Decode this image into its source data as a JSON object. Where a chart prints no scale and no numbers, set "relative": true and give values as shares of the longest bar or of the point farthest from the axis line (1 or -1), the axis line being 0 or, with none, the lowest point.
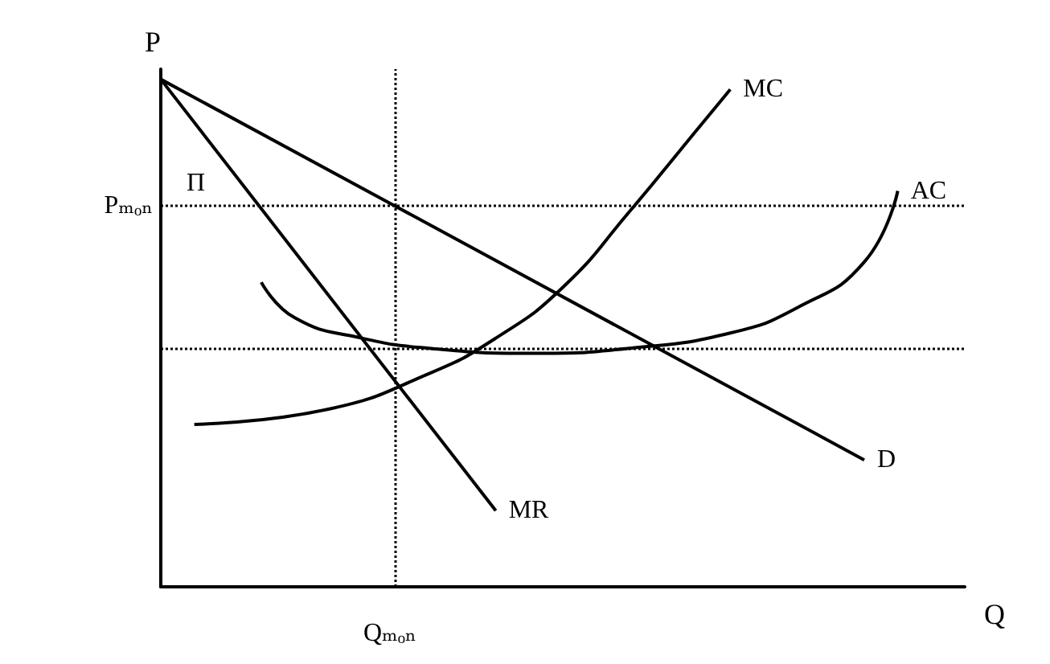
{
  "chart_data": {
    "type": "line",
    "relative": true,
    "xlabel": "Q",
    "ylabel": "P",
    "categories": [
      null,
      null,
      null,
      null,
      null,
      null,
      null,
      null,
      null,
      null,
      null,
      null,
      null,
      null,
      null,
      null,
      null,
      null,
      null,
      null,
      null,
      null,
      null,
      null,
      null
    ],
    "series": [
      {
        "name": "MC",
        "color": "#000000",
        "values": [
          null,
          0.32,
          null,
          null,
          null,
          0.35,
          null,
          null,
          0.42,
          null,
          0.49,
          null,
          0.59,
          null,
          0.74,
          null,
          0.9,
          0.98,
          null,
          null,
          null,
          null,
          null,
          null,
          null
        ]
      },
      {
        "name": "AC",
        "color": "#000000",
        "values": [
          null,
          null,
          null,
          0.6,
          0.53,
          null,
          0.49,
          null,
          0.47,
          null,
          null,
          0.46,
          null,
          null,
          0.47,
          null,
          null,
          0.5,
          null,
          0.55,
          null,
          0.64,
          0.78,
          null,
          null
        ]
      },
      {
        "name": "D",
        "color": "#000000",
        "values": [
          1,
          null,
          null,
          null,
          null,
          null,
          null,
          null,
          null,
          null,
          null,
          null,
          null,
          null,
          null,
          null,
          null,
          null,
          null,
          null,
          null,
          0.25,
          null,
          null,
          null
        ]
      },
      {
        "name": "MR",
        "color": "#000000",
        "values": [
          1,
          null,
          null,
          null,
          null,
          null,
          null,
          null,
          null,
          null,
          0.15,
          null,
          null,
          null,
          null,
          null,
          null,
          null,
          null,
          null,
          null,
          null,
          null,
          null,
          null
        ]
      }
    ],
    "ref_lines": [
      {
        "axis": "y",
        "value": 0.75,
        "label": "Pₘₒₙ",
        "line_style": "dotted",
        "color": "#000000"
      },
      {
        "axis": "y",
        "value": 0.47,
        "label": null,
        "line_style": "dotted",
        "color": "#000000"
      }
    ],
    "annotations": [
      "Π",
      "Qₘₒₙ"
    ],
    "grid": false,
    "legend": false,
    "marker": "none",
    "line_style": "solid"
  }
}
